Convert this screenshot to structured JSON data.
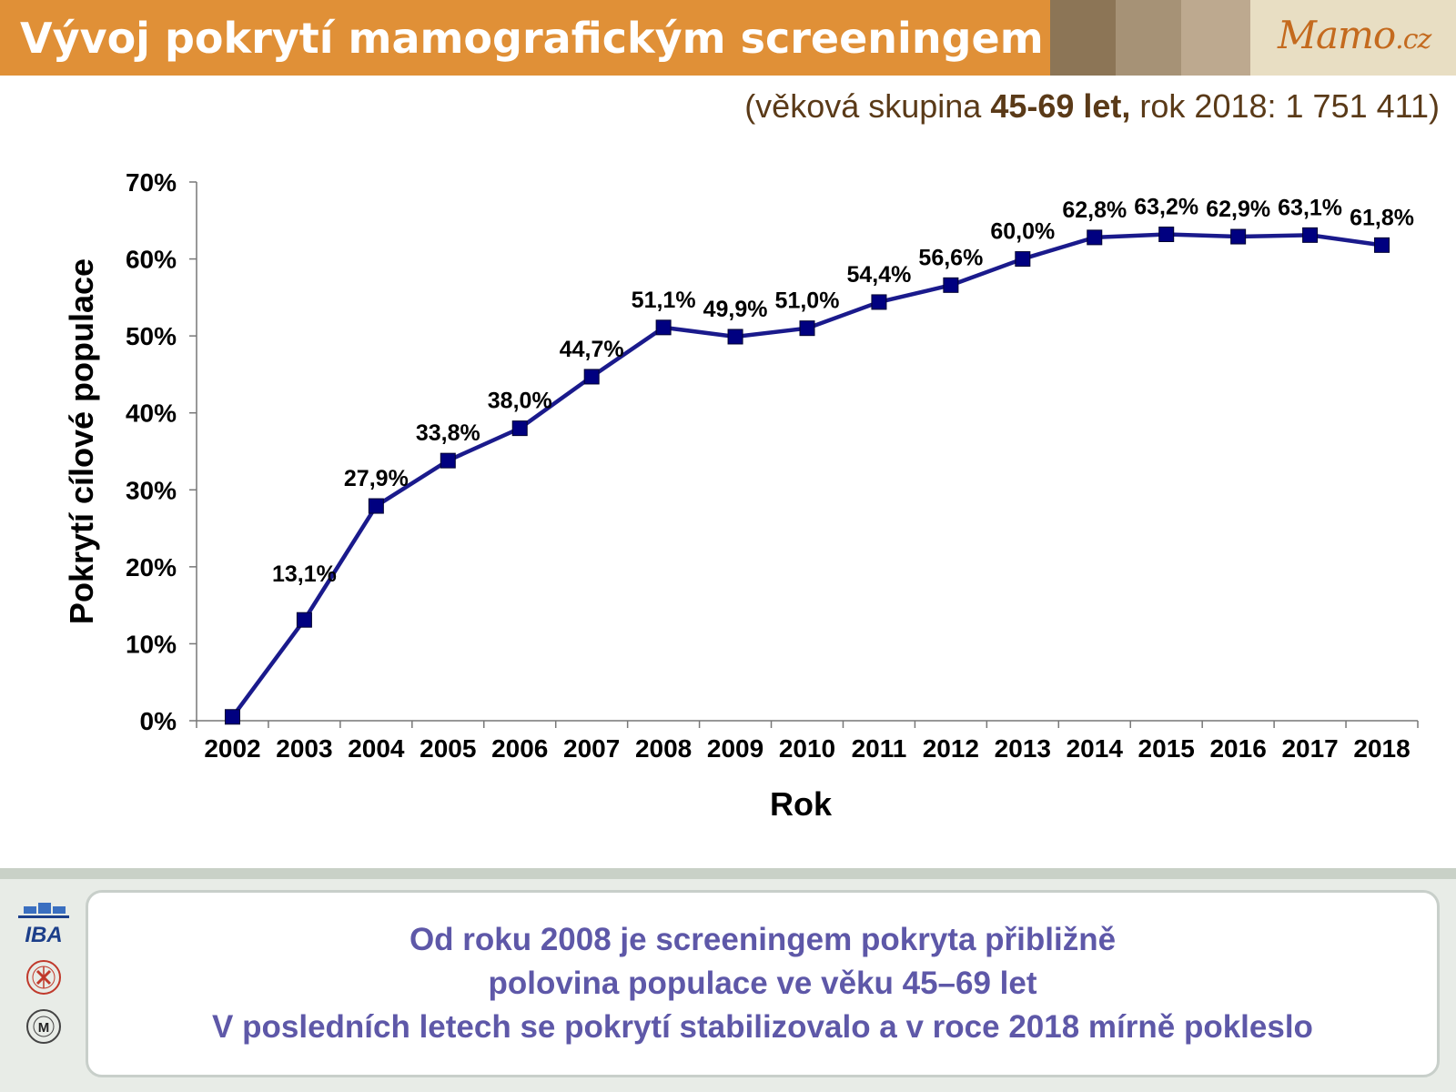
{
  "header": {
    "title": "Vývoj pokrytí mamografickým screeningem",
    "logo_main": "Mamo",
    "logo_suffix": ".cz"
  },
  "subtitle": {
    "prefix": "(věková skupina ",
    "group": "45-69 let,",
    "suffix": " rok 2018: 1 751 411)"
  },
  "chart_data": {
    "type": "line",
    "xlabel": "Rok",
    "ylabel": "Pokrytí cílové populace",
    "categories": [
      "2002",
      "2003",
      "2004",
      "2005",
      "2006",
      "2007",
      "2008",
      "2009",
      "2010",
      "2011",
      "2012",
      "2013",
      "2014",
      "2015",
      "2016",
      "2017",
      "2018"
    ],
    "values": [
      0.5,
      13.1,
      27.9,
      33.8,
      38.0,
      44.7,
      51.1,
      49.9,
      51.0,
      54.4,
      56.6,
      60.0,
      62.8,
      63.2,
      62.9,
      63.1,
      61.8
    ],
    "data_labels": [
      "",
      "13,1%",
      "27,9%",
      "33,8%",
      "38,0%",
      "44,7%",
      "51,1%",
      "49,9%",
      "51,0%",
      "54,4%",
      "56,6%",
      "60,0%",
      "62,8%",
      "63,2%",
      "62,9%",
      "63,1%",
      "61,8%"
    ],
    "ylim": [
      0,
      70
    ],
    "yticks": [
      0,
      10,
      20,
      30,
      40,
      50,
      60,
      70
    ],
    "ytick_labels": [
      "0%",
      "10%",
      "20%",
      "30%",
      "40%",
      "50%",
      "60%",
      "70%"
    ],
    "grid": false,
    "legend": "none",
    "line_color": "#1a1a8c",
    "marker_color": "#000080"
  },
  "conclusion": {
    "lines": [
      "Od roku 2008 je screeningem pokryta přibližně",
      "polovina populace ve věku 45–69 let",
      "V posledních letech se pokrytí stabilizovalo a v roce 2018 mírně pokleslo"
    ]
  },
  "footer_logos": {
    "iba": "IBA",
    "iba_icon": "iba-logo",
    "medicine_icon": "faculty-of-medicine-seal-icon",
    "university_icon": "masaryk-university-seal-icon"
  },
  "colors": {
    "header_orange": "#e09037",
    "brand_brown": "#8c7556",
    "conclusion_text": "#5e58a8",
    "subtitle_text": "#5a3a18"
  }
}
